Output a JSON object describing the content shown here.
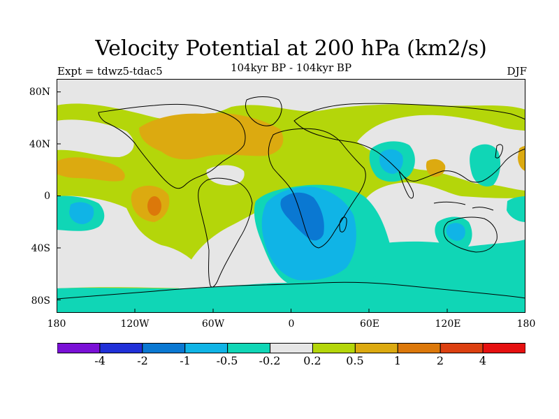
{
  "map": {
    "title": "Velocity Potential at 200 hPa (km2/s)",
    "subtitle": "104kyr BP - 104kyr BP",
    "left_label": "Expt = tdwz5-tdac5",
    "right_label": "DJF",
    "projection": "cylindrical equidistant",
    "lat_labels": [
      "80N",
      "40N",
      "0",
      "40S",
      "80S"
    ],
    "lon_labels": [
      "180",
      "120W",
      "60W",
      "0",
      "60E",
      "120E",
      "180"
    ]
  },
  "colorbar": {
    "colors": [
      "#7a10d6",
      "#2030d8",
      "#0a78d2",
      "#10b4e6",
      "#10d6b6",
      "#e6e6e6",
      "#b4d60a",
      "#dcaa10",
      "#dc780a",
      "#dc4010",
      "#e61010"
    ],
    "labels": [
      "-4",
      "-2",
      "-1",
      "-0.5",
      "-0.2",
      "0.2",
      "0.5",
      "1",
      "2",
      "4"
    ]
  }
}
